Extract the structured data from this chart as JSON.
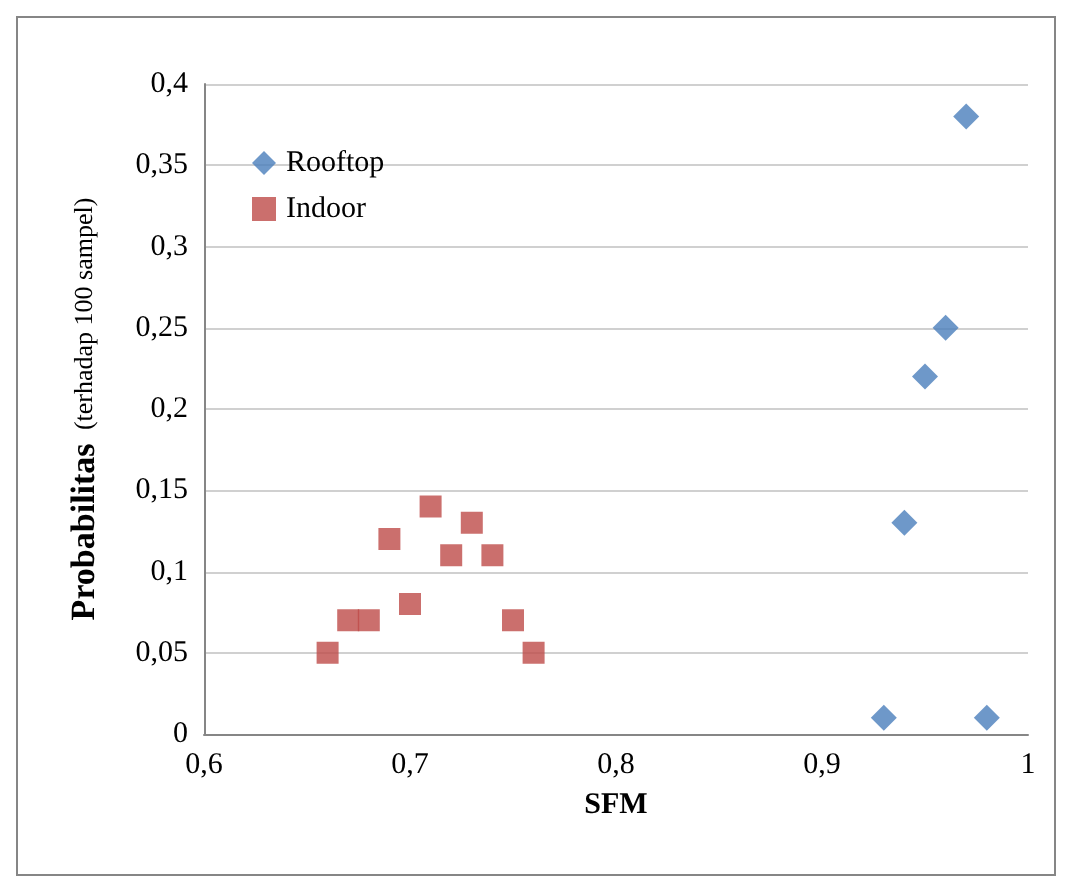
{
  "chart_data": {
    "type": "scatter",
    "xlabel": "SFM",
    "ylabel": "Probabilitas (terhadap 100 sampel)",
    "xlim": [
      0.6,
      1
    ],
    "xticks": [
      {
        "value": 0.6,
        "label": "0,6"
      },
      {
        "value": 0.7,
        "label": "0,7"
      },
      {
        "value": 0.8,
        "label": "0,8"
      },
      {
        "value": 0.9,
        "label": "0,9"
      },
      {
        "value": 1,
        "label": "1"
      }
    ],
    "ylim": [
      0,
      0.4
    ],
    "yticks": [
      {
        "value": 0,
        "label": "0"
      },
      {
        "value": 0.05,
        "label": "0,05"
      },
      {
        "value": 0.1,
        "label": "0,1"
      },
      {
        "value": 0.15,
        "label": "0,15"
      },
      {
        "value": 0.2,
        "label": "0,2"
      },
      {
        "value": 0.25,
        "label": "0,25"
      },
      {
        "value": 0.3,
        "label": "0,3"
      },
      {
        "value": 0.35,
        "label": "0,35"
      },
      {
        "value": 0.4,
        "label": "0,4"
      }
    ],
    "grid": "y",
    "legend": "top left",
    "series": [
      {
        "name": "Rooftop",
        "color": "#4a7ebb",
        "marker": "diamond",
        "x": [
          0.93,
          0.94,
          0.95,
          0.96,
          0.97,
          0.98
        ],
        "values": [
          0.01,
          0.13,
          0.22,
          0.25,
          0.38,
          0.01
        ]
      },
      {
        "name": "Indoor",
        "color": "#be4b48",
        "marker": "square",
        "x": [
          0.66,
          0.67,
          0.68,
          0.69,
          0.7,
          0.71,
          0.72,
          0.73,
          0.74,
          0.75,
          0.76
        ],
        "values": [
          0.05,
          0.07,
          0.07,
          0.12,
          0.08,
          0.14,
          0.11,
          0.13,
          0.11,
          0.07,
          0.05
        ]
      }
    ]
  }
}
